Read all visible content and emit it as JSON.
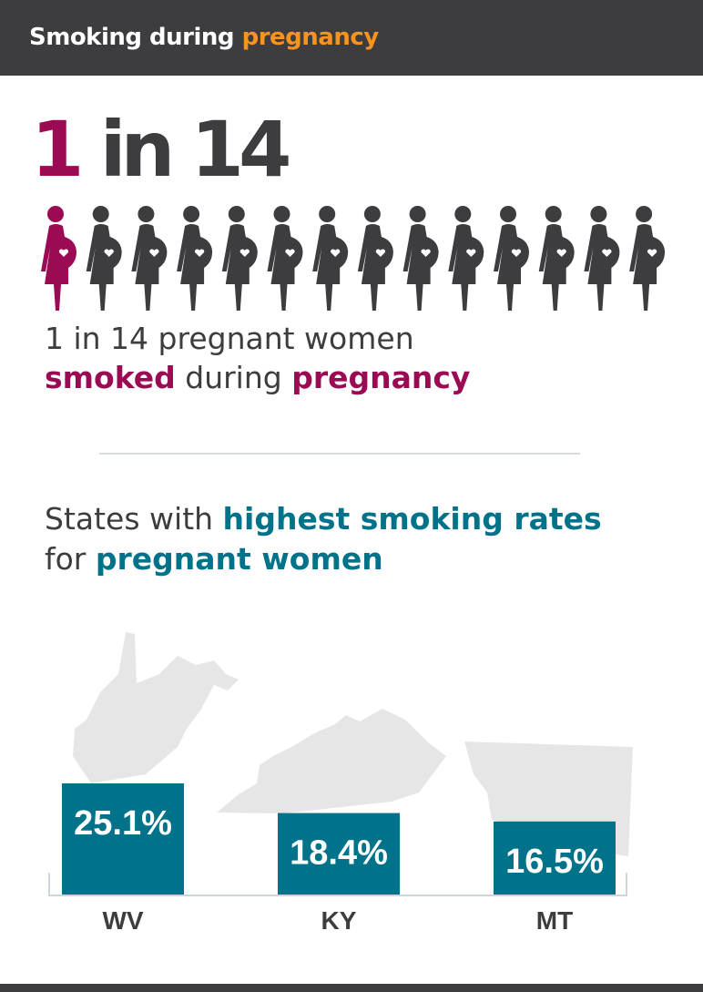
{
  "header": {
    "title_prefix": "Smoking during ",
    "title_highlight": "pregnancy"
  },
  "stat": {
    "numerator": "1",
    "rest": " in 14",
    "total_figures": 14,
    "highlighted_figures": 1,
    "icon": "pregnant-woman-icon"
  },
  "statement": {
    "line1": "1 in 14 pregnant women",
    "w1": "smoked",
    "w2": " during ",
    "w3": "pregnancy"
  },
  "section": {
    "a1": "States with ",
    "a2": "highest smoking rates",
    "b1": "for ",
    "b2": "pregnant women"
  },
  "colors": {
    "header_bg": "#3d3c3e",
    "accent_orange": "#f7941d",
    "magenta": "#9b0b53",
    "teal": "#00738a",
    "dark": "#3d3c3e",
    "map_gray": "#e6e6e6"
  },
  "chart_data": {
    "type": "bar",
    "categories": [
      "WV",
      "KY",
      "MT"
    ],
    "values": [
      25.1,
      18.4,
      16.5
    ],
    "labels": [
      "25.1%",
      "18.4%",
      "16.5%"
    ],
    "title": "States with highest smoking rates for pregnant women",
    "xlabel": "",
    "ylabel": "",
    "ylim": [
      0,
      25.1
    ],
    "grid": false
  }
}
